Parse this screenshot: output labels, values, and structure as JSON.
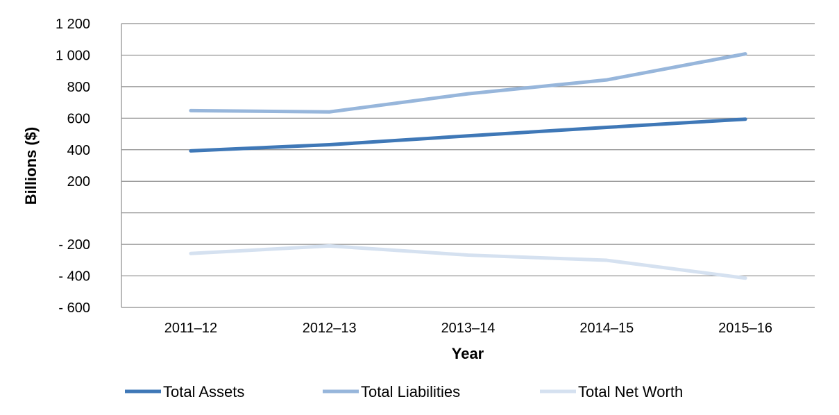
{
  "chart_data": {
    "type": "line",
    "title": "",
    "xlabel": "Year",
    "ylabel": "Billions ($)",
    "categories": [
      "2011–12",
      "2012–13",
      "2013–14",
      "2014–15",
      "2015–16"
    ],
    "ylim": [
      -600,
      1200
    ],
    "yticks": [
      -600,
      -400,
      -200,
      0,
      200,
      400,
      600,
      800,
      1000,
      1200
    ],
    "ytick_labels": [
      "- 600",
      "- 400",
      "- 200",
      "",
      "200",
      "400",
      "600",
      "800",
      "1 000",
      "1 200"
    ],
    "grid": true,
    "legend_position": "bottom",
    "series": [
      {
        "name": "Total Assets",
        "color": "#3F78B7",
        "values": [
          393,
          432,
          488,
          542,
          594
        ]
      },
      {
        "name": "Total Liabilities",
        "color": "#97B6DB",
        "values": [
          648,
          640,
          755,
          843,
          1008
        ]
      },
      {
        "name": "Total Net Worth",
        "color": "#D5E1F0",
        "values": [
          -258,
          -210,
          -268,
          -301,
          -414
        ]
      }
    ]
  }
}
